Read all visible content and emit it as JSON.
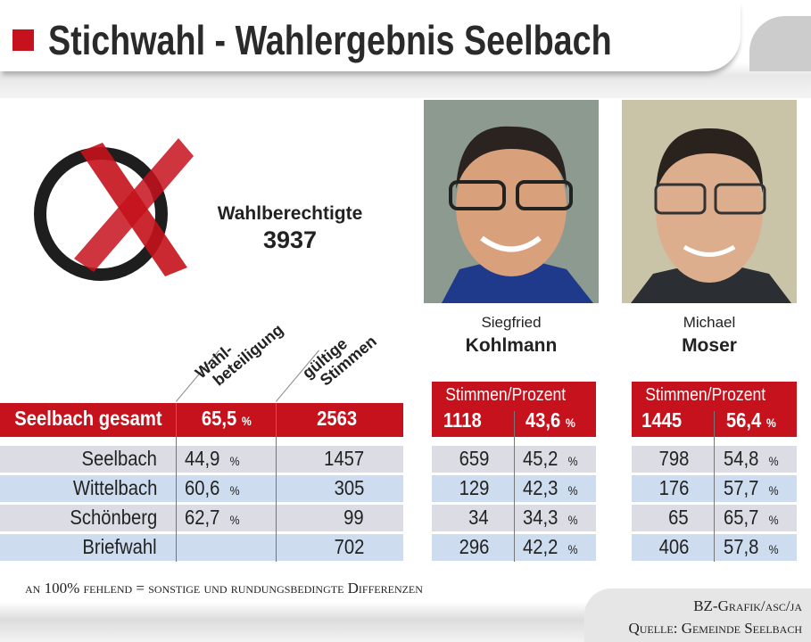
{
  "title": "Stichwahl - Wahlergebnis Seelbach",
  "colors": {
    "accent": "#c5121c",
    "row_gray": "#dcdce4",
    "row_blue": "#cddcee"
  },
  "icons": {
    "ballot": "ballot-cross-icon"
  },
  "electorate": {
    "label": "Wahlberechtigte",
    "value": "3937"
  },
  "candidates": [
    {
      "first": "Siegfried",
      "last": "Kohlmann",
      "header": "Stimmen/Prozent",
      "total_votes": "1118",
      "total_pct": "43,6"
    },
    {
      "first": "Michael",
      "last": "Moser",
      "header": "Stimmen/Prozent",
      "total_votes": "1445",
      "total_pct": "56,4"
    }
  ],
  "columns": {
    "turnout": "Wahl-\nbeteiligung",
    "turnout_l1": "Wahl-",
    "turnout_l2": "beteiligung",
    "valid_l1": "gültige",
    "valid_l2": "Stimmen"
  },
  "percent_sign": "%",
  "total": {
    "name": "Seelbach gesamt",
    "turnout": "65,5",
    "valid": "2563"
  },
  "rows": [
    {
      "name": "Seelbach",
      "turnout": "44,9",
      "valid": "1457",
      "k_votes": "659",
      "k_pct": "45,2",
      "m_votes": "798",
      "m_pct": "54,8"
    },
    {
      "name": "Wittelbach",
      "turnout": "60,6",
      "valid": "305",
      "k_votes": "129",
      "k_pct": "42,3",
      "m_votes": "176",
      "m_pct": "57,7"
    },
    {
      "name": "Schönberg",
      "turnout": "62,7",
      "valid": "99",
      "k_votes": "34",
      "k_pct": "34,3",
      "m_votes": "65",
      "m_pct": "65,7"
    },
    {
      "name": "Briefwahl",
      "turnout": "",
      "valid": "702",
      "k_votes": "296",
      "k_pct": "42,2",
      "m_votes": "406",
      "m_pct": "57,8"
    }
  ],
  "footer": {
    "note": "an 100% fehlend = sonstige und rundungsbedingte Differenzen",
    "credit": "BZ-Grafik/asc/ja",
    "source": "Quelle: Gemeinde Seelbach"
  }
}
